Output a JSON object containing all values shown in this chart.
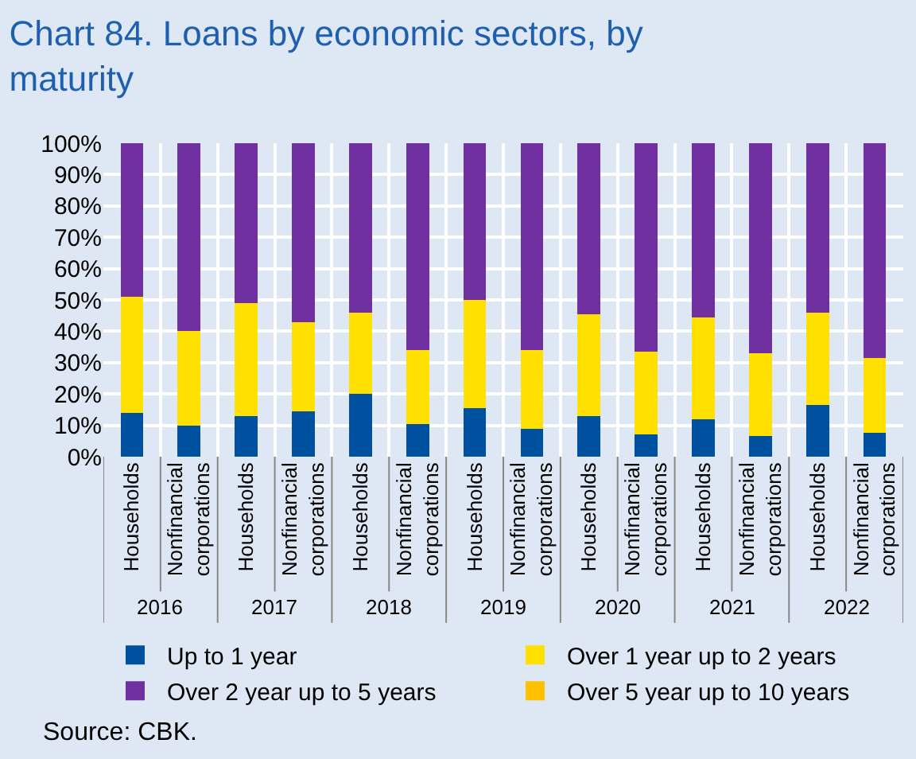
{
  "chart_data": {
    "type": "bar",
    "stacked": true,
    "title": "Chart 84. Loans by economic sectors, by maturity",
    "categories": [
      "Households",
      "Nonfinancial corporations",
      "Households",
      "Nonfinancial corporations",
      "Households",
      "Nonfinancial corporations",
      "Households",
      "Nonfinancial corporations",
      "Households",
      "Nonfinancial corporations",
      "Households",
      "Nonfinancial corporations",
      "Households",
      "Nonfinancial corporations"
    ],
    "series": [
      {
        "name": "Up to 1 year",
        "color": "#0050a0",
        "values": [
          14,
          10,
          13,
          14.5,
          20,
          10.5,
          15.5,
          9,
          13,
          7,
          12,
          6.5,
          16.5,
          7.5
        ]
      },
      {
        "name": "Over 1 year up to 2 years",
        "color": "#ffe000",
        "values": [
          37,
          30,
          36,
          28.5,
          26,
          23.5,
          34.5,
          25,
          32.5,
          26.5,
          32.5,
          26.5,
          29.5,
          24
        ]
      },
      {
        "name": "Over 2 year up to 5 years",
        "color": "#7030a0",
        "values": [
          49,
          60,
          51,
          57,
          54,
          66,
          50,
          66,
          54.5,
          66.5,
          55.5,
          67,
          54,
          68.5
        ]
      },
      {
        "name": "Over 5 year up to 10 years",
        "color": "#ffc000",
        "values": [
          0,
          0,
          0,
          0,
          0,
          0,
          0,
          0,
          0,
          0,
          0,
          0,
          0,
          0
        ]
      }
    ],
    "ylim": [
      0,
      100
    ],
    "yticks": [
      {
        "value": 0,
        "label": "0%"
      },
      {
        "value": 10,
        "label": "10%"
      },
      {
        "value": 20,
        "label": "20%"
      },
      {
        "value": 30,
        "label": "30%"
      },
      {
        "value": 40,
        "label": "40%"
      },
      {
        "value": 50,
        "label": "50%"
      },
      {
        "value": 60,
        "label": "60%"
      },
      {
        "value": 70,
        "label": "70%"
      },
      {
        "value": 80,
        "label": "80%"
      },
      {
        "value": 90,
        "label": "90%"
      },
      {
        "value": 100,
        "label": "100%"
      }
    ],
    "grid": true,
    "legend": "bottom",
    "annotations": [
      "2016",
      "2017",
      "2018",
      "2019",
      "2020",
      "2021",
      "2022",
      "Source: CBK."
    ]
  }
}
